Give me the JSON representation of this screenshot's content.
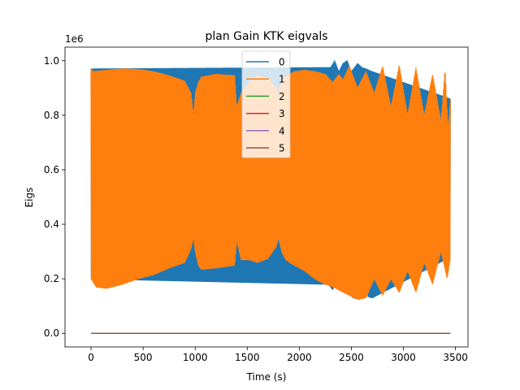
{
  "chart_data": {
    "type": "line",
    "title": "plan Gain KTK eigvals",
    "xlabel": "Time (s)",
    "ylabel": "Eigs",
    "y_offset_label": "1e6",
    "xlim": [
      -250,
      3620
    ],
    "ylim": [
      -50000,
      1050000
    ],
    "x_ticks": [
      0,
      500,
      1000,
      1500,
      2000,
      2500,
      3000,
      3500
    ],
    "x_tick_labels": [
      "0",
      "500",
      "1000",
      "1500",
      "2000",
      "2500",
      "3000",
      "3500"
    ],
    "y_ticks": [
      0,
      200000,
      400000,
      600000,
      800000,
      1000000
    ],
    "y_tick_labels": [
      "0.0",
      "0.2",
      "0.4",
      "0.6",
      "0.8",
      "1.0"
    ],
    "grid": false,
    "legend_position": "top-center",
    "series": [
      {
        "name": "0",
        "color": "#1f77b4",
        "style": "oscillating-band",
        "upper_envelope": [
          [
            0,
            970000
          ],
          [
            2300,
            975000
          ],
          [
            2340,
            1000000
          ],
          [
            2380,
            960000
          ],
          [
            2420,
            990000
          ],
          [
            2460,
            1000000
          ],
          [
            2500,
            960000
          ],
          [
            2560,
            990000
          ],
          [
            2600,
            975000
          ],
          [
            2640,
            970000
          ],
          [
            2700,
            960000
          ],
          [
            3450,
            860000
          ]
        ],
        "lower_envelope": [
          [
            0,
            200000
          ],
          [
            2280,
            180000
          ],
          [
            2320,
            160000
          ],
          [
            2360,
            190000
          ],
          [
            2420,
            230000
          ],
          [
            2460,
            150000
          ],
          [
            2520,
            130000
          ],
          [
            2580,
            125000
          ],
          [
            2620,
            240000
          ],
          [
            2660,
            135000
          ],
          [
            2700,
            130000
          ],
          [
            3450,
            280000
          ]
        ]
      },
      {
        "name": "1",
        "color": "#ff7f0e",
        "style": "oscillating-band",
        "upper_envelope": [
          [
            0,
            970000
          ],
          [
            25,
            960000
          ],
          [
            150,
            965000
          ],
          [
            300,
            970000
          ],
          [
            450,
            968000
          ],
          [
            600,
            960000
          ],
          [
            750,
            945000
          ],
          [
            900,
            925000
          ],
          [
            960,
            880000
          ],
          [
            985,
            800000
          ],
          [
            1000,
            880000
          ],
          [
            1030,
            920000
          ],
          [
            1060,
            940000
          ],
          [
            1200,
            950000
          ],
          [
            1380,
            945000
          ],
          [
            1400,
            830000
          ],
          [
            1440,
            880000
          ],
          [
            1520,
            920000
          ],
          [
            1600,
            945000
          ],
          [
            1700,
            935000
          ],
          [
            1780,
            900000
          ],
          [
            1800,
            880000
          ],
          [
            1830,
            930000
          ],
          [
            1870,
            940000
          ],
          [
            1950,
            960000
          ],
          [
            2050,
            965000
          ],
          [
            2150,
            960000
          ],
          [
            2250,
            950000
          ],
          [
            2320,
            920000
          ],
          [
            2380,
            950000
          ],
          [
            2420,
            930000
          ],
          [
            2480,
            980000
          ],
          [
            2560,
            900000
          ],
          [
            2640,
            960000
          ],
          [
            2720,
            880000
          ],
          [
            2800,
            980000
          ],
          [
            2880,
            830000
          ],
          [
            2960,
            985000
          ],
          [
            3040,
            800000
          ],
          [
            3120,
            975000
          ],
          [
            3200,
            800000
          ],
          [
            3280,
            950000
          ],
          [
            3360,
            780000
          ],
          [
            3400,
            970000
          ],
          [
            3430,
            750000
          ],
          [
            3450,
            860000
          ]
        ],
        "lower_envelope": [
          [
            0,
            200000
          ],
          [
            50,
            170000
          ],
          [
            150,
            165000
          ],
          [
            300,
            180000
          ],
          [
            450,
            200000
          ],
          [
            600,
            215000
          ],
          [
            750,
            240000
          ],
          [
            900,
            260000
          ],
          [
            960,
            310000
          ],
          [
            985,
            350000
          ],
          [
            1000,
            300000
          ],
          [
            1030,
            250000
          ],
          [
            1060,
            235000
          ],
          [
            1200,
            240000
          ],
          [
            1380,
            250000
          ],
          [
            1400,
            340000
          ],
          [
            1440,
            270000
          ],
          [
            1520,
            270000
          ],
          [
            1600,
            260000
          ],
          [
            1700,
            275000
          ],
          [
            1780,
            320000
          ],
          [
            1800,
            350000
          ],
          [
            1830,
            300000
          ],
          [
            1870,
            270000
          ],
          [
            1950,
            250000
          ],
          [
            2050,
            230000
          ],
          [
            2150,
            200000
          ],
          [
            2250,
            180000
          ],
          [
            2330,
            170000
          ],
          [
            2400,
            155000
          ],
          [
            2480,
            140000
          ],
          [
            2560,
            125000
          ],
          [
            2640,
            130000
          ],
          [
            2720,
            200000
          ],
          [
            2800,
            140000
          ],
          [
            2880,
            200000
          ],
          [
            2960,
            150000
          ],
          [
            3040,
            230000
          ],
          [
            3120,
            150000
          ],
          [
            3200,
            260000
          ],
          [
            3280,
            180000
          ],
          [
            3360,
            300000
          ],
          [
            3420,
            200000
          ],
          [
            3450,
            270000
          ]
        ]
      },
      {
        "name": "2",
        "color": "#2ca02c",
        "style": "flat",
        "points": [
          [
            0,
            0
          ],
          [
            3450,
            0
          ]
        ]
      },
      {
        "name": "3",
        "color": "#d62728",
        "style": "flat",
        "points": [
          [
            0,
            0
          ],
          [
            3450,
            0
          ]
        ]
      },
      {
        "name": "4",
        "color": "#9467bd",
        "style": "flat",
        "points": [
          [
            0,
            0
          ],
          [
            3450,
            0
          ]
        ]
      },
      {
        "name": "5",
        "color": "#8c564b",
        "style": "flat",
        "points": [
          [
            0,
            0
          ],
          [
            3450,
            0
          ]
        ]
      }
    ]
  }
}
